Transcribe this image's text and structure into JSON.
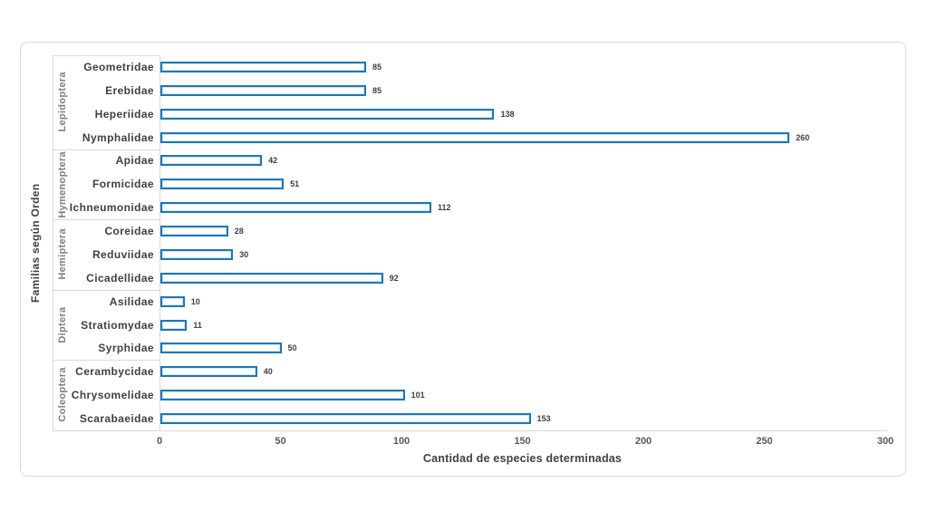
{
  "chart_data": {
    "type": "bar",
    "orientation": "horizontal",
    "xlabel": "Cantidad de especies determinadas",
    "ylabel": "Familias según Orden",
    "xlim": [
      0,
      300
    ],
    "xticks": [
      0,
      50,
      100,
      150,
      200,
      250,
      300
    ],
    "grid": false,
    "legend": "none",
    "bar_border_color": "#1f77b4",
    "bar_fill_color": "#ffffff",
    "groups": [
      {
        "order": "Lepidoptera",
        "families": [
          {
            "label": "Geometridae",
            "value": 85
          },
          {
            "label": "Erebidae",
            "value": 85
          },
          {
            "label": "Heperiidae",
            "value": 138
          },
          {
            "label": "Nymphalidae",
            "value": 260
          }
        ]
      },
      {
        "order": "Hymenoptera",
        "families": [
          {
            "label": "Apidae",
            "value": 42
          },
          {
            "label": "Formicidae",
            "value": 51
          },
          {
            "label": "Ichneumonidae",
            "value": 112
          }
        ]
      },
      {
        "order": "Hemiptera",
        "families": [
          {
            "label": "Coreidae",
            "value": 28
          },
          {
            "label": "Reduviidae",
            "value": 30
          },
          {
            "label": "Cicadellidae",
            "value": 92
          }
        ]
      },
      {
        "order": "Diptera",
        "families": [
          {
            "label": "Asilidae",
            "value": 10
          },
          {
            "label": "Stratiomydae",
            "value": 11
          },
          {
            "label": "Syrphidae",
            "value": 50
          }
        ]
      },
      {
        "order": "Coleoptera",
        "families": [
          {
            "label": "Cerambycidae",
            "value": 40
          },
          {
            "label": "Chrysomelidae",
            "value": 101
          },
          {
            "label": "Scarabaeidae",
            "value": 153
          }
        ]
      }
    ]
  }
}
